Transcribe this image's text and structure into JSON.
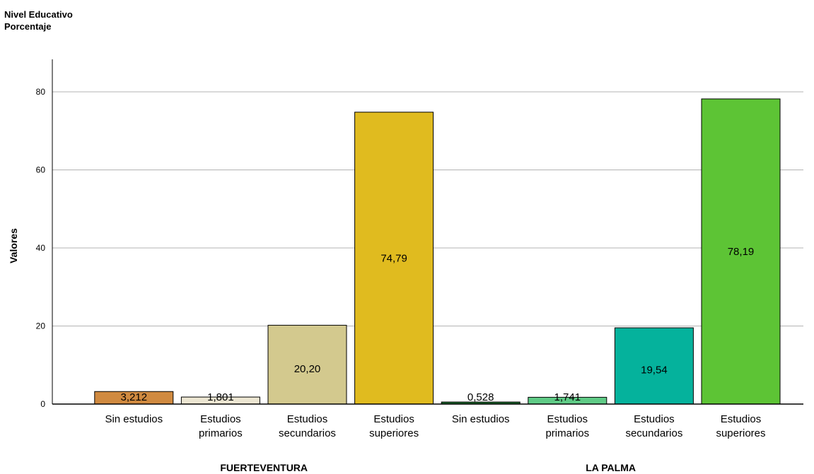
{
  "chart_data": {
    "type": "bar",
    "legend_title": "Nivel Educativo",
    "subtitle": "Porcentaje",
    "ylabel": "Valores",
    "ylim": [
      0,
      88
    ],
    "yticks": [
      0,
      20,
      40,
      60,
      80
    ],
    "grid": true,
    "groups": [
      {
        "name": "FUERTEVENTURA",
        "bars": [
          {
            "category": "Sin estudios",
            "lines": [
              "Sin estudios"
            ],
            "value": 3.212,
            "label": "3,212",
            "color": "#d08a40"
          },
          {
            "category": "Estudios primarios",
            "lines": [
              "Estudios",
              "primarios"
            ],
            "value": 1.801,
            "label": "1,801",
            "color": "#ece6d2"
          },
          {
            "category": "Estudios secundarios",
            "lines": [
              "Estudios",
              "secundarios"
            ],
            "value": 20.2,
            "label": "20,20",
            "color": "#d3c98e"
          },
          {
            "category": "Estudios superiores",
            "lines": [
              "Estudios",
              "superiores"
            ],
            "value": 74.79,
            "label": "74,79",
            "color": "#e0bb1f"
          }
        ]
      },
      {
        "name": "LA PALMA",
        "bars": [
          {
            "category": "Sin estudios",
            "lines": [
              "Sin estudios"
            ],
            "value": 0.528,
            "label": "0,528",
            "color": "#1c6b2c"
          },
          {
            "category": "Estudios primarios",
            "lines": [
              "Estudios",
              "primarios"
            ],
            "value": 1.741,
            "label": "1,741",
            "color": "#5fcb86"
          },
          {
            "category": "Estudios secundarios",
            "lines": [
              "Estudios",
              "secundarios"
            ],
            "value": 19.54,
            "label": "19,54",
            "color": "#05b29c"
          },
          {
            "category": "Estudios superiores",
            "lines": [
              "Estudios",
              "superiores"
            ],
            "value": 78.19,
            "label": "78,19",
            "color": "#5dc435"
          }
        ]
      }
    ]
  }
}
